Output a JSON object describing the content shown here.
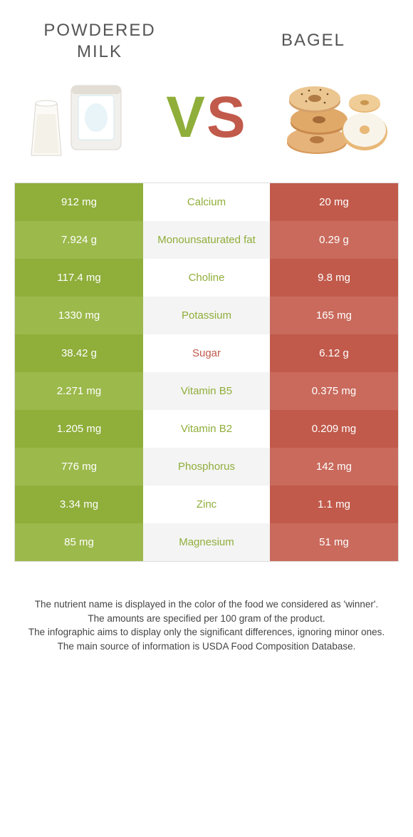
{
  "colors": {
    "left_a": "#8fae3a",
    "left_b": "#9cb94b",
    "right_a": "#c15a4b",
    "right_b": "#c96a5c",
    "mid_even": "#f4f4f4",
    "nutrient_green": "#8fae3a",
    "nutrient_red": "#c15a4b"
  },
  "header": {
    "left_title": "POWDERED MILK",
    "right_title": "BAGEL",
    "vs_v": "V",
    "vs_s": "S"
  },
  "rows": [
    {
      "left": "912 mg",
      "name": "Calcium",
      "right": "20 mg",
      "winner": "left"
    },
    {
      "left": "7.924 g",
      "name": "Monounsaturated fat",
      "right": "0.29 g",
      "winner": "left"
    },
    {
      "left": "117.4 mg",
      "name": "Choline",
      "right": "9.8 mg",
      "winner": "left"
    },
    {
      "left": "1330 mg",
      "name": "Potassium",
      "right": "165 mg",
      "winner": "left"
    },
    {
      "left": "38.42 g",
      "name": "Sugar",
      "right": "6.12 g",
      "winner": "right"
    },
    {
      "left": "2.271 mg",
      "name": "Vitamin B5",
      "right": "0.375 mg",
      "winner": "left"
    },
    {
      "left": "1.205 mg",
      "name": "Vitamin B2",
      "right": "0.209 mg",
      "winner": "left"
    },
    {
      "left": "776 mg",
      "name": "Phosphorus",
      "right": "142 mg",
      "winner": "left"
    },
    {
      "left": "3.34 mg",
      "name": "Zinc",
      "right": "1.1 mg",
      "winner": "left"
    },
    {
      "left": "85 mg",
      "name": "Magnesium",
      "right": "51 mg",
      "winner": "left"
    }
  ],
  "footer": {
    "l1": "The nutrient name is displayed in the color of the food we considered as 'winner'.",
    "l2": "The amounts are specified per 100 gram of the product.",
    "l3": "The infographic aims to display only the significant differences, ignoring minor ones.",
    "l4": "The main source of information is USDA Food Composition Database."
  }
}
